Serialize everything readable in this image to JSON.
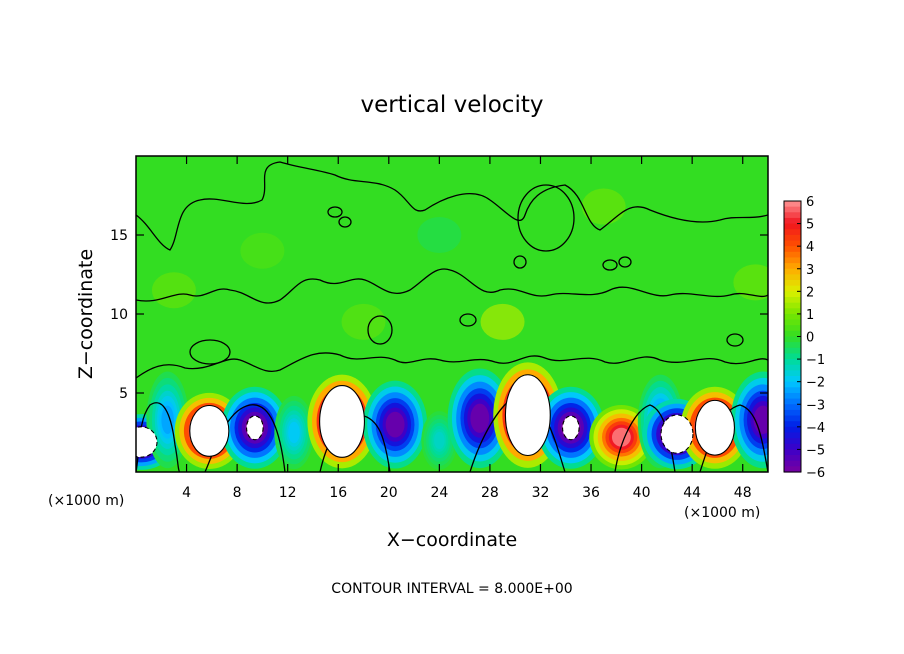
{
  "chart_data": {
    "type": "heatmap",
    "title": "vertical velocity",
    "xlabel": "X−coordinate",
    "ylabel": "Z−coordinate",
    "x_unit_left": "(×1000 m)",
    "x_unit_right": "(×1000 m)",
    "x_range": [
      0,
      50
    ],
    "y_range": [
      0,
      20
    ],
    "x_ticks": [
      4,
      8,
      12,
      16,
      20,
      24,
      28,
      32,
      36,
      40,
      44,
      48
    ],
    "y_ticks": [
      5,
      10,
      15
    ],
    "colorbar": {
      "range": [
        -6,
        6
      ],
      "ticks": [
        6,
        5,
        4,
        3,
        2,
        1,
        0,
        -1,
        -2,
        -3,
        -4,
        -5,
        -6
      ],
      "tick_labels": [
        "6",
        "5",
        "4",
        "3",
        "2",
        "1",
        "0",
        "−1",
        "−2",
        "−3",
        "−4",
        "−5",
        "−6"
      ]
    },
    "cells": [
      {
        "x": 0.4,
        "z": 1.9,
        "w": -8
      },
      {
        "x": 2.5,
        "z": 3.3,
        "w": -2.5
      },
      {
        "x": 5.8,
        "z": 2.6,
        "w": 9
      },
      {
        "x": 9.4,
        "z": 2.8,
        "w": -6.5
      },
      {
        "x": 12.5,
        "z": 2.5,
        "w": -2
      },
      {
        "x": 16.3,
        "z": 3.2,
        "w": 10
      },
      {
        "x": 20.5,
        "z": 3.0,
        "w": -6
      },
      {
        "x": 24.0,
        "z": 2.0,
        "w": -1.5
      },
      {
        "x": 27.2,
        "z": 3.4,
        "w": -6
      },
      {
        "x": 31.0,
        "z": 3.6,
        "w": 10
      },
      {
        "x": 34.4,
        "z": 2.8,
        "w": -6.5
      },
      {
        "x": 38.4,
        "z": 2.2,
        "w": 6
      },
      {
        "x": 41.5,
        "z": 3.2,
        "w": -3
      },
      {
        "x": 42.8,
        "z": 2.4,
        "w": -8
      },
      {
        "x": 45.8,
        "z": 2.8,
        "w": 9
      },
      {
        "x": 49.6,
        "z": 3.3,
        "w": -6
      }
    ],
    "annotation": "CONTOUR INTERVAL = 8.000E+00"
  }
}
